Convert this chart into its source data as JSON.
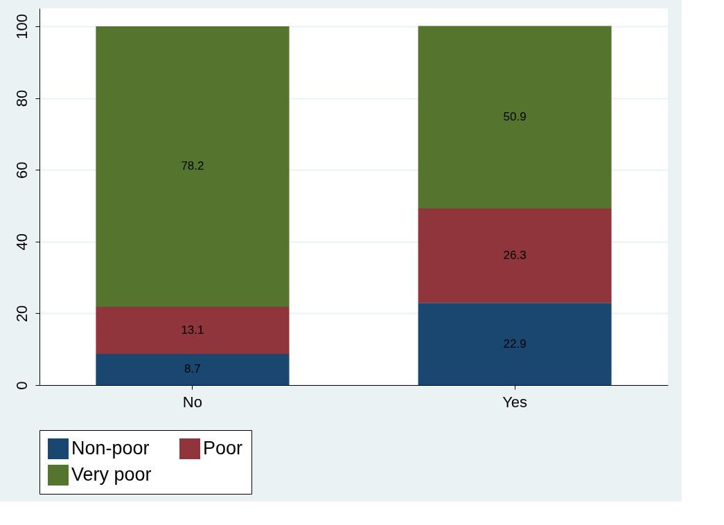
{
  "chart_data": {
    "type": "bar",
    "stacked": true,
    "categories": [
      "No",
      "Yes"
    ],
    "series": [
      {
        "name": "Non-poor",
        "color": "#1a476f",
        "values": [
          8.7,
          22.9
        ]
      },
      {
        "name": "Poor",
        "color": "#90353b",
        "values": [
          13.1,
          26.3
        ]
      },
      {
        "name": "Very poor",
        "color": "#55752f",
        "values": [
          78.2,
          50.9
        ]
      }
    ],
    "ylim": [
      0,
      105
    ],
    "yticks": [
      0,
      20,
      40,
      60,
      80,
      100
    ],
    "grid": "y",
    "legend": "bottom",
    "data_labels": true
  }
}
